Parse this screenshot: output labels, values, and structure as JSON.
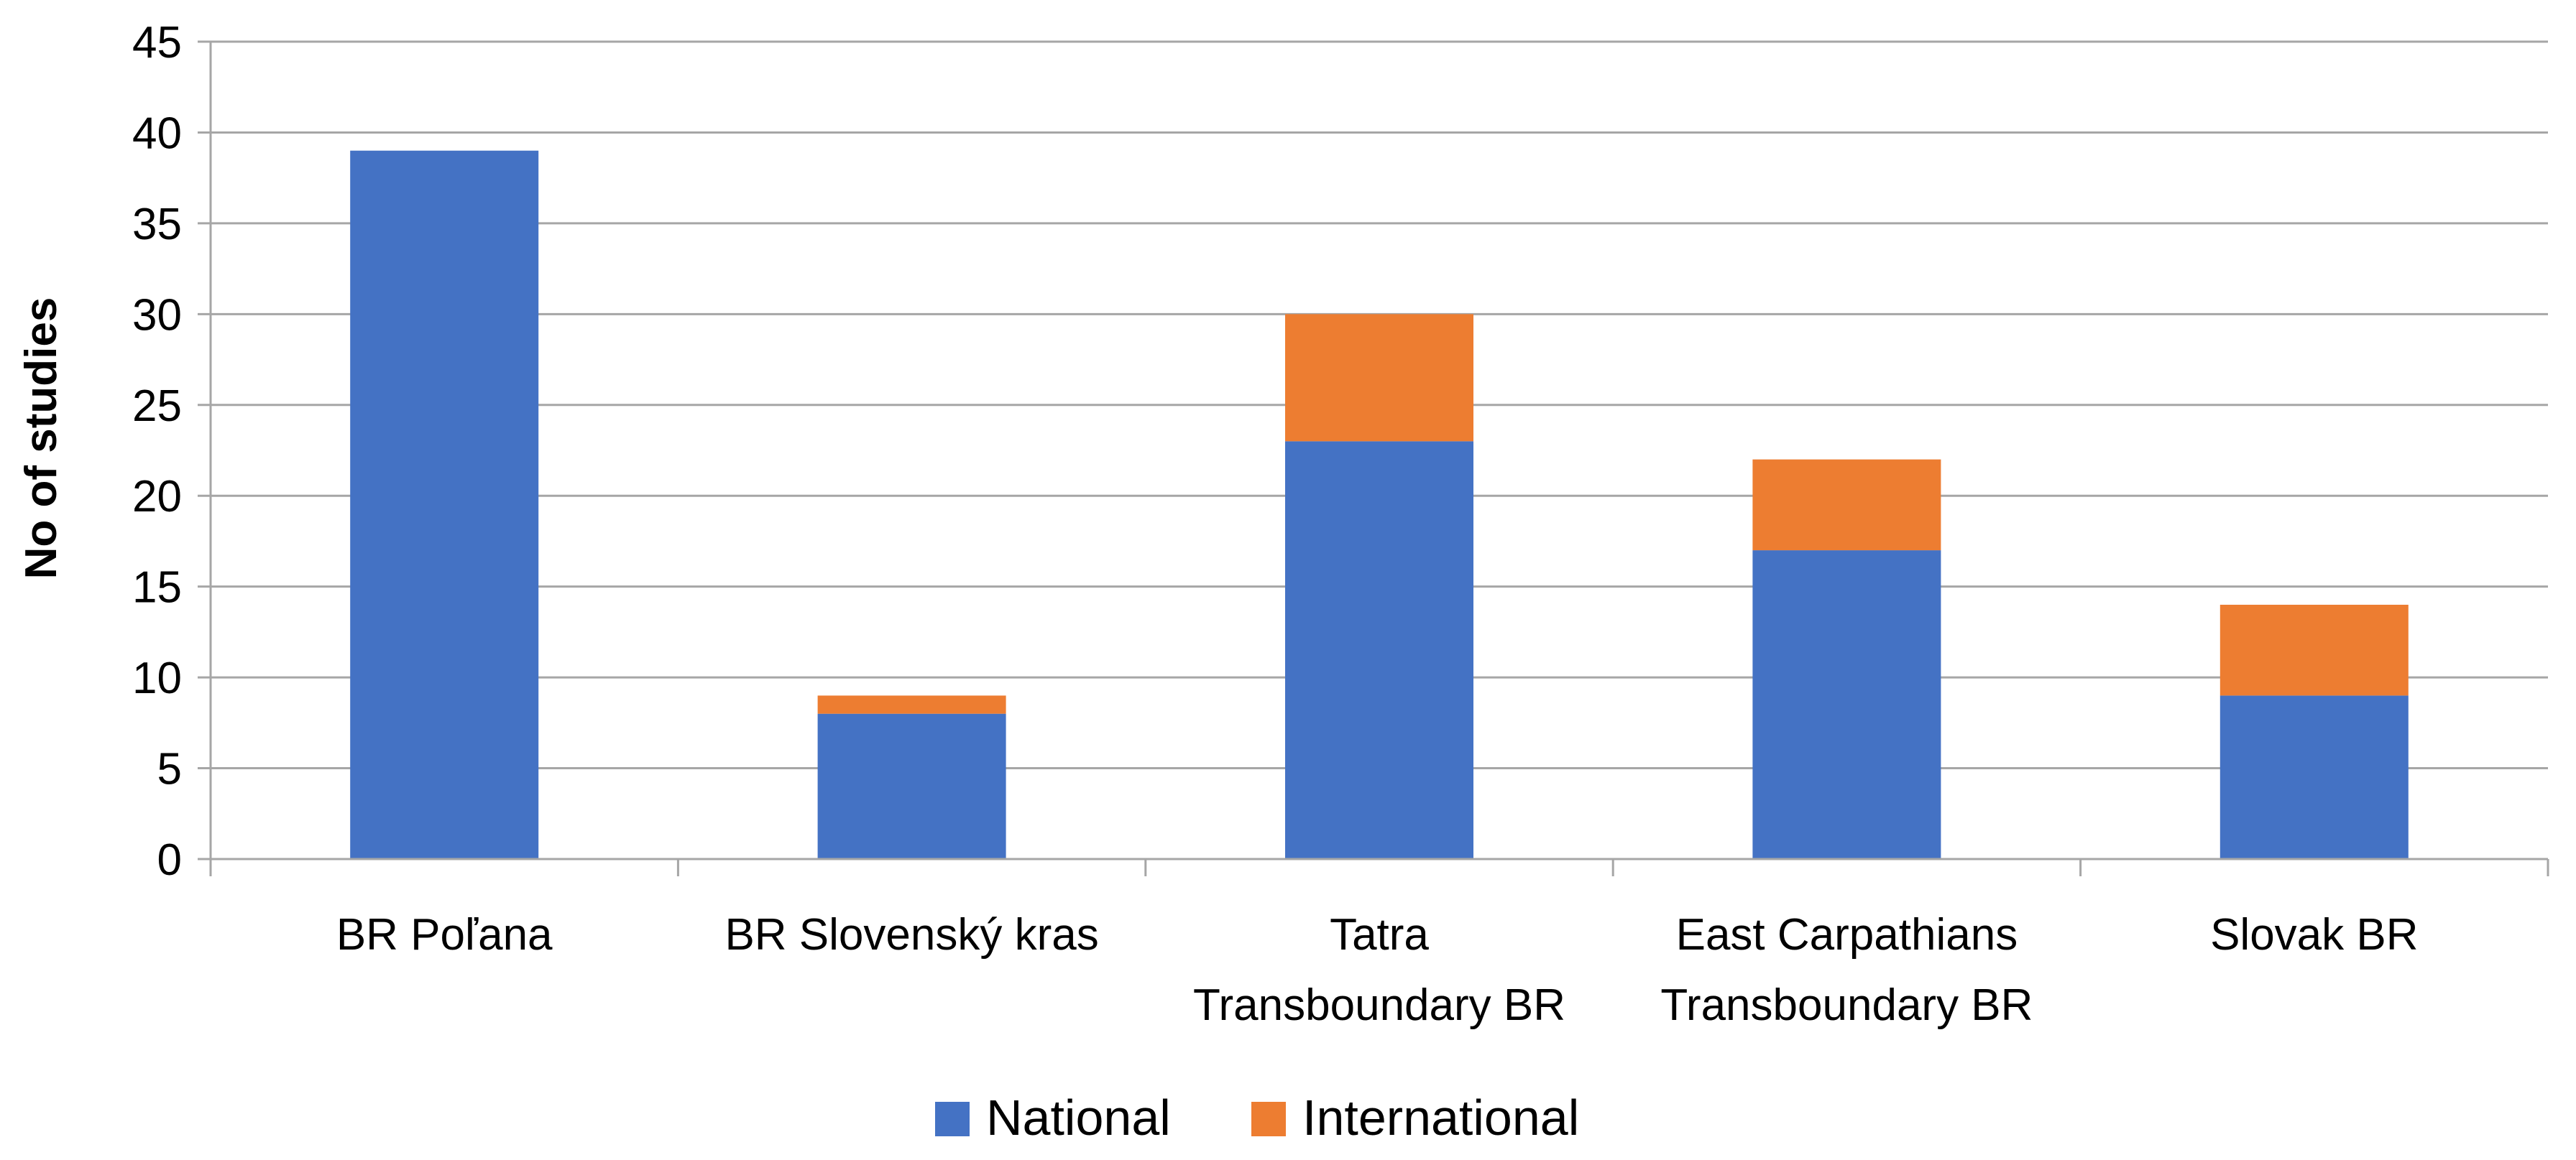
{
  "chart_data": {
    "type": "bar",
    "stacked": true,
    "title": "",
    "xlabel": "",
    "ylabel": "No of studies",
    "ylim": [
      0,
      45
    ],
    "yticks": [
      0,
      5,
      10,
      15,
      20,
      25,
      30,
      35,
      40,
      45
    ],
    "grid": true,
    "legend_position": "bottom",
    "categories": [
      [
        "BR Poľana"
      ],
      [
        "BR Slovenský  kras"
      ],
      [
        "Tatra",
        "Transboundary BR"
      ],
      [
        "East Carpathians",
        "Transboundary BR"
      ],
      [
        "Slovak BR"
      ]
    ],
    "series": [
      {
        "name": "National",
        "color": "#4472C4",
        "values": [
          39,
          8,
          23,
          17,
          9
        ]
      },
      {
        "name": "International",
        "color": "#ED7D31",
        "values": [
          0,
          1,
          7,
          5,
          5
        ]
      }
    ]
  }
}
